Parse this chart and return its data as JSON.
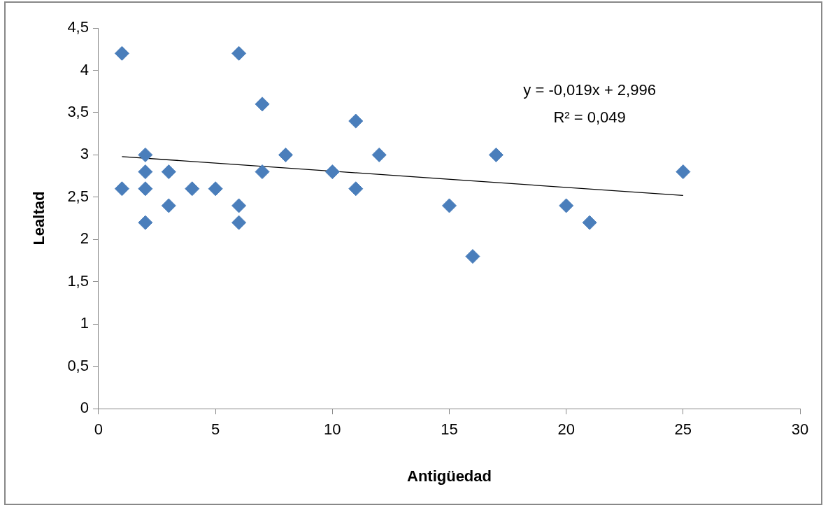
{
  "chart_data": {
    "type": "scatter",
    "xlabel": "Antigüedad",
    "ylabel": "Lealtad",
    "xlim": [
      0,
      30
    ],
    "xticks": [
      0,
      5,
      10,
      15,
      20,
      25,
      30
    ],
    "ylim": [
      0,
      4.5
    ],
    "yticks": [
      0,
      {
        "value": 0.5,
        "label": "0,5"
      },
      1,
      {
        "value": 1.5,
        "label": "1,5"
      },
      2,
      {
        "value": 2.5,
        "label": "2,5"
      },
      3,
      {
        "value": 3.5,
        "label": "3,5"
      },
      4,
      {
        "value": 4.5,
        "label": "4,5"
      }
    ],
    "grid": false,
    "legend": false,
    "marker": "diamond",
    "series": [
      {
        "type": "scatter",
        "color": "#4a7ebb",
        "x": [
          1,
          1,
          2,
          2,
          2,
          2,
          3,
          3,
          4,
          5,
          6,
          6,
          6,
          7,
          7,
          8,
          10,
          11,
          11,
          12,
          15,
          16,
          17,
          20,
          21,
          25
        ],
        "values": [
          4.2,
          2.6,
          3.0,
          2.8,
          2.6,
          2.2,
          2.8,
          2.4,
          2.6,
          2.6,
          4.2,
          2.4,
          2.2,
          3.6,
          2.8,
          3.0,
          2.8,
          3.4,
          2.6,
          3.0,
          2.4,
          1.8,
          3.0,
          2.4,
          2.2,
          2.8
        ]
      },
      {
        "type": "line",
        "color": "#000000",
        "marker": "none",
        "x": [
          1,
          25
        ],
        "values": [
          2.98,
          2.52
        ]
      }
    ],
    "annotations": [
      "y = -0,019x + 2,996",
      "R² = 0,049"
    ]
  }
}
